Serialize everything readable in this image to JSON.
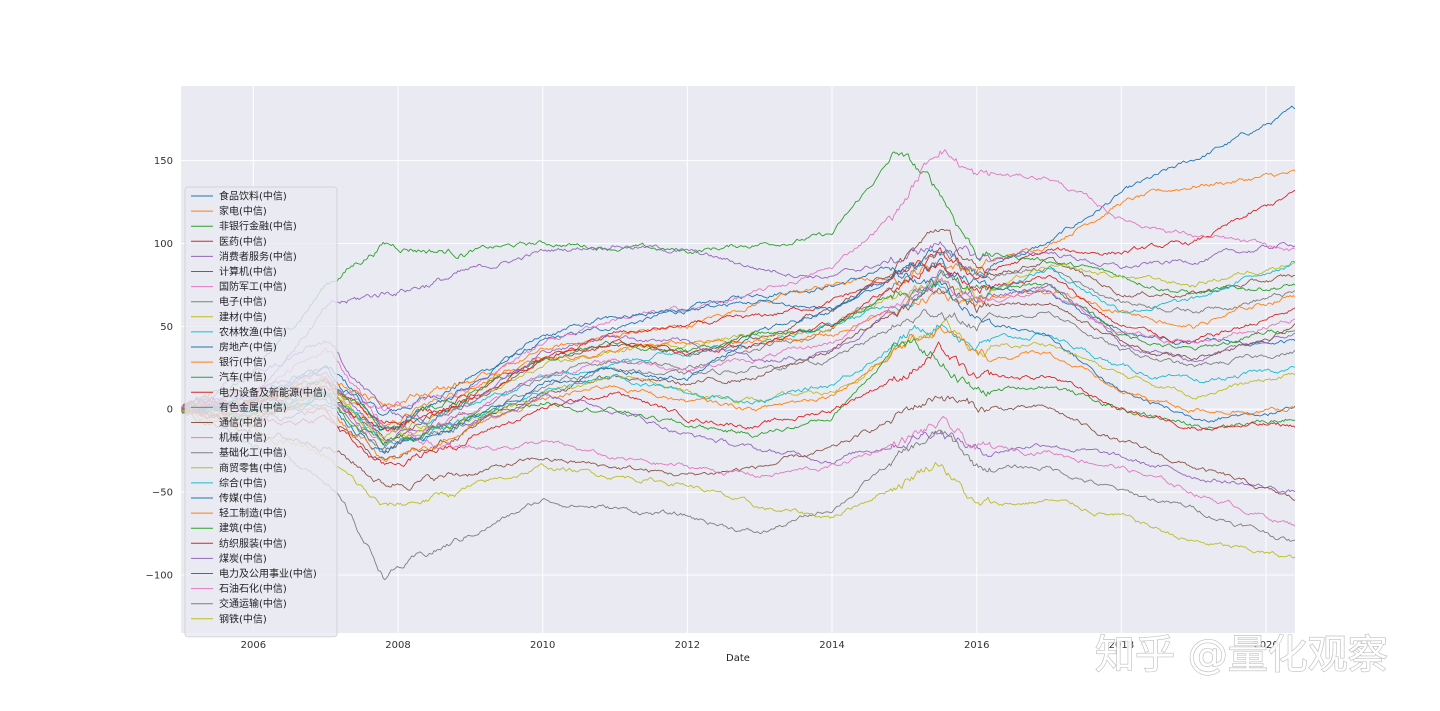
{
  "watermark": "知乎 @量化观察",
  "chart_data": {
    "type": "line",
    "title": "",
    "xlabel": "Date",
    "ylabel": "",
    "xlim": [
      2005.0,
      2020.4
    ],
    "ylim": [
      -135,
      195
    ],
    "x_ticks": [
      2006,
      2008,
      2010,
      2012,
      2014,
      2016,
      2018,
      2020
    ],
    "x_tick_labels": [
      "2006",
      "2008",
      "2010",
      "2012",
      "2014",
      "2016",
      "2018",
      "2020"
    ],
    "y_ticks": [
      -100,
      -50,
      0,
      50,
      100,
      150
    ],
    "y_tick_labels": [
      "−100",
      "−50",
      "0",
      "50",
      "100",
      "150"
    ],
    "grid": true,
    "legend_position": "left",
    "x_knots": [
      2005.0,
      2006.0,
      2007.0,
      2007.8,
      2008.8,
      2010.0,
      2011.0,
      2012.0,
      2013.0,
      2014.0,
      2014.9,
      2015.5,
      2016.0,
      2017.0,
      2018.0,
      2019.0,
      2020.4
    ],
    "series": [
      {
        "name": "食品饮料(中信)",
        "color": "#1f77b4",
        "values": [
          0,
          10,
          25,
          -5,
          15,
          40,
          50,
          60,
          70,
          75,
          85,
          95,
          85,
          100,
          130,
          150,
          180
        ]
      },
      {
        "name": "家电(中信)",
        "color": "#ff7f0e",
        "values": [
          0,
          5,
          20,
          -10,
          10,
          35,
          45,
          50,
          65,
          75,
          80,
          90,
          85,
          100,
          125,
          135,
          142
        ]
      },
      {
        "name": "非银行金融(中信)",
        "color": "#2ca02c",
        "values": [
          0,
          20,
          75,
          100,
          95,
          100,
          98,
          95,
          100,
          105,
          155,
          130,
          95,
          90,
          80,
          70,
          75
        ]
      },
      {
        "name": "医药(中信)",
        "color": "#d62728",
        "values": [
          0,
          5,
          15,
          -10,
          5,
          30,
          45,
          50,
          55,
          65,
          80,
          90,
          80,
          95,
          95,
          100,
          130
        ]
      },
      {
        "name": "消费者服务(中信)",
        "color": "#9467bd",
        "values": [
          0,
          10,
          60,
          70,
          80,
          95,
          100,
          95,
          85,
          80,
          90,
          100,
          90,
          95,
          85,
          90,
          100
        ]
      },
      {
        "name": "计算机(中信)",
        "color": "#8c564b",
        "values": [
          0,
          5,
          10,
          -20,
          0,
          30,
          40,
          35,
          45,
          60,
          85,
          110,
          80,
          90,
          70,
          70,
          80
        ]
      },
      {
        "name": "国防军工(中信)",
        "color": "#e377c2",
        "values": [
          0,
          5,
          20,
          0,
          10,
          40,
          55,
          60,
          70,
          85,
          120,
          160,
          140,
          140,
          115,
          105,
          95
        ]
      },
      {
        "name": "电子(中信)",
        "color": "#7f7f7f",
        "values": [
          0,
          0,
          10,
          -25,
          -5,
          20,
          30,
          25,
          35,
          50,
          75,
          95,
          80,
          85,
          65,
          60,
          70
        ]
      },
      {
        "name": "建材(中信)",
        "color": "#bcbd22",
        "values": [
          0,
          5,
          15,
          -20,
          0,
          25,
          35,
          40,
          45,
          50,
          70,
          80,
          70,
          85,
          80,
          75,
          90
        ]
      },
      {
        "name": "农林牧渔(中信)",
        "color": "#17becf",
        "values": [
          0,
          0,
          10,
          -15,
          0,
          20,
          30,
          35,
          40,
          50,
          65,
          75,
          70,
          85,
          60,
          65,
          90
        ]
      },
      {
        "name": "房地产(中信)",
        "color": "#1f77b4",
        "values": [
          0,
          5,
          25,
          -10,
          10,
          45,
          55,
          60,
          65,
          60,
          80,
          85,
          75,
          70,
          45,
          40,
          40
        ]
      },
      {
        "name": "银行(中信)",
        "color": "#ff7f0e",
        "values": [
          0,
          10,
          20,
          5,
          15,
          30,
          35,
          40,
          40,
          45,
          60,
          70,
          65,
          70,
          60,
          50,
          70
        ]
      },
      {
        "name": "汽车(中信)",
        "color": "#2ca02c",
        "values": [
          0,
          5,
          20,
          -10,
          5,
          30,
          40,
          35,
          45,
          50,
          70,
          80,
          70,
          75,
          45,
          35,
          50
        ]
      },
      {
        "name": "电力设备及新能源(中信)",
        "color": "#d62728",
        "values": [
          0,
          5,
          15,
          -15,
          0,
          30,
          40,
          35,
          40,
          50,
          75,
          90,
          75,
          80,
          50,
          40,
          60
        ]
      },
      {
        "name": "有色金属(中信)",
        "color": "#9467bd",
        "values": [
          0,
          10,
          25,
          -20,
          0,
          35,
          45,
          40,
          30,
          35,
          60,
          80,
          65,
          75,
          40,
          30,
          45
        ]
      },
      {
        "name": "通信(中信)",
        "color": "#8c564b",
        "values": [
          0,
          -5,
          0,
          -30,
          -15,
          10,
          20,
          15,
          20,
          35,
          60,
          75,
          60,
          65,
          40,
          30,
          50
        ]
      },
      {
        "name": "机械(中信)",
        "color": "#e377c2",
        "values": [
          0,
          0,
          10,
          -20,
          -5,
          20,
          30,
          25,
          30,
          40,
          65,
          80,
          65,
          70,
          45,
          40,
          55
        ]
      },
      {
        "name": "基础化工(中信)",
        "color": "#7f7f7f",
        "values": [
          0,
          -5,
          5,
          -25,
          -10,
          15,
          25,
          20,
          25,
          30,
          50,
          60,
          50,
          60,
          35,
          25,
          35
        ]
      },
      {
        "name": "商贸零售(中信)",
        "color": "#bcbd22",
        "values": [
          0,
          -5,
          10,
          -20,
          -10,
          10,
          20,
          10,
          5,
          10,
          35,
          50,
          35,
          40,
          20,
          10,
          20
        ]
      },
      {
        "name": "综合(中信)",
        "color": "#17becf",
        "values": [
          0,
          0,
          10,
          -20,
          -10,
          10,
          20,
          10,
          5,
          15,
          40,
          55,
          40,
          45,
          25,
          15,
          25
        ]
      },
      {
        "name": "传媒(中信)",
        "color": "#1f77b4",
        "values": [
          0,
          -5,
          5,
          -25,
          -10,
          15,
          25,
          20,
          45,
          60,
          80,
          75,
          55,
          45,
          10,
          -5,
          0
        ]
      },
      {
        "name": "轻工制造(中信)",
        "color": "#ff7f0e",
        "values": [
          0,
          -5,
          0,
          -30,
          -15,
          5,
          15,
          5,
          0,
          10,
          35,
          50,
          30,
          35,
          10,
          0,
          0
        ]
      },
      {
        "name": "建筑(中信)",
        "color": "#2ca02c",
        "values": [
          0,
          -5,
          5,
          -20,
          -10,
          5,
          0,
          -10,
          -15,
          -5,
          40,
          30,
          10,
          15,
          0,
          -10,
          -5
        ]
      },
      {
        "name": "纺织服装(中信)",
        "color": "#d62728",
        "values": [
          0,
          -10,
          -5,
          -35,
          -20,
          0,
          10,
          -5,
          -10,
          0,
          20,
          35,
          15,
          20,
          0,
          -10,
          -10
        ]
      },
      {
        "name": "煤炭(中信)",
        "color": "#9467bd",
        "values": [
          0,
          20,
          40,
          0,
          -10,
          10,
          0,
          -15,
          -25,
          -30,
          -20,
          -10,
          -25,
          -20,
          -30,
          -40,
          -50
        ]
      },
      {
        "name": "电力及公用事业(中信)",
        "color": "#8c564b",
        "values": [
          0,
          -15,
          -20,
          -45,
          -40,
          -30,
          -35,
          -40,
          -35,
          -25,
          -5,
          10,
          0,
          0,
          -20,
          -35,
          -55
        ]
      },
      {
        "name": "石油石化(中信)",
        "color": "#e377c2",
        "values": [
          0,
          10,
          40,
          -10,
          -25,
          -20,
          -30,
          -35,
          -40,
          -35,
          -20,
          -10,
          -25,
          -25,
          -35,
          -50,
          -70
        ]
      },
      {
        "name": "交通运输(中信)",
        "color": "#7f7f7f",
        "values": [
          0,
          -20,
          -40,
          -100,
          -80,
          -55,
          -60,
          -65,
          -75,
          -60,
          -30,
          -15,
          -35,
          -35,
          -50,
          -60,
          -80
        ]
      },
      {
        "name": "钢铁(中信)",
        "color": "#bcbd22",
        "values": [
          0,
          -10,
          -30,
          -60,
          -50,
          -35,
          -40,
          -45,
          -60,
          -65,
          -45,
          -30,
          -60,
          -55,
          -65,
          -80,
          -90
        ]
      }
    ]
  }
}
